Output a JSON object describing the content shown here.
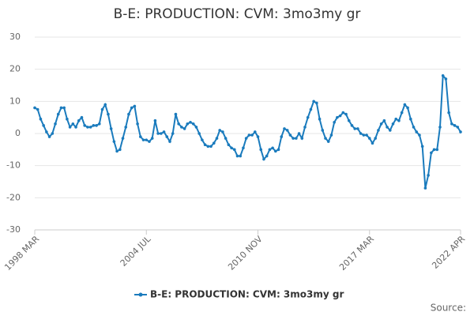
{
  "chart_data": {
    "type": "line",
    "title": "B-E: PRODUCTION: CVM: 3mo3my gr",
    "categories": [
      "1998 MAR",
      null,
      null,
      null,
      null,
      null,
      null,
      null,
      null,
      null,
      null,
      null,
      null,
      null,
      null,
      null,
      null,
      null,
      null,
      null,
      null,
      null,
      null,
      null,
      null,
      null,
      null,
      null,
      null,
      null,
      null,
      null,
      null,
      null,
      null,
      null,
      null,
      null,
      "2004 JUL",
      null,
      null,
      null,
      null,
      null,
      null,
      null,
      null,
      null,
      null,
      null,
      null,
      null,
      null,
      null,
      null,
      null,
      null,
      null,
      null,
      null,
      null,
      null,
      null,
      null,
      null,
      null,
      null,
      null,
      null,
      null,
      null,
      null,
      null,
      null,
      null,
      null,
      "2010 NOV",
      null,
      null,
      null,
      null,
      null,
      null,
      null,
      null,
      null,
      null,
      null,
      null,
      null,
      null,
      null,
      null,
      null,
      null,
      null,
      null,
      null,
      null,
      null,
      null,
      null,
      null,
      null,
      null,
      null,
      null,
      null,
      null,
      null,
      null,
      null,
      null,
      null,
      "2017 MAR",
      null,
      null,
      null,
      null,
      null,
      null,
      null,
      null,
      null,
      null,
      null,
      null,
      null,
      null,
      null,
      null,
      null,
      null,
      null,
      null,
      null,
      null,
      null,
      null,
      null,
      null,
      null,
      null,
      null,
      null,
      "2022 APR"
    ],
    "series": [
      {
        "name": "B-E: PRODUCTION: CVM: 3mo3my gr",
        "color": "#1a7bbd",
        "values": [
          8,
          7.5,
          4.5,
          2.5,
          0.5,
          -1,
          0,
          3,
          6,
          8,
          8,
          4.5,
          2,
          3,
          2,
          4,
          5,
          2.5,
          2,
          2,
          2.5,
          2.5,
          3,
          7.5,
          9,
          6,
          1.5,
          -2.5,
          -5.5,
          -5,
          -1.5,
          2,
          6,
          8,
          8.5,
          3,
          -1,
          -2,
          -2,
          -2.5,
          -1.5,
          4,
          0,
          0,
          0.5,
          -1,
          -2.5,
          0,
          6,
          3,
          2,
          1.5,
          3,
          3.5,
          3,
          2,
          0,
          -2,
          -3.5,
          -4,
          -4,
          -3,
          -1.5,
          1,
          0.5,
          -1.5,
          -3.5,
          -4.5,
          -5,
          -7,
          -7,
          -4.5,
          -1.5,
          -0.5,
          -0.5,
          0.5,
          -1,
          -5,
          -8,
          -7,
          -5,
          -4.5,
          -5.5,
          -5,
          -1,
          1.5,
          1,
          -0.5,
          -1.5,
          -1.5,
          0,
          -1.5,
          2,
          5,
          7.5,
          10,
          9.5,
          4.5,
          1,
          -1.5,
          -2.5,
          -0.5,
          3.5,
          5,
          5.5,
          6.5,
          6,
          4,
          2.5,
          1.5,
          1.5,
          0,
          -0.5,
          -0.5,
          -1.5,
          -3,
          -1.5,
          1,
          3,
          4,
          2,
          1,
          3,
          4.5,
          4,
          6.5,
          9,
          8,
          4.5,
          2,
          0.5,
          -0.5,
          -4,
          -17,
          -13,
          -6,
          -5,
          -5,
          2,
          18,
          17,
          6.5,
          3,
          2.5,
          2,
          0.5
        ]
      }
    ],
    "ylim": [
      -30,
      30
    ],
    "yticks": [
      -30,
      -20,
      -10,
      0,
      10,
      20,
      30
    ],
    "grid": true,
    "source": "Source:"
  }
}
